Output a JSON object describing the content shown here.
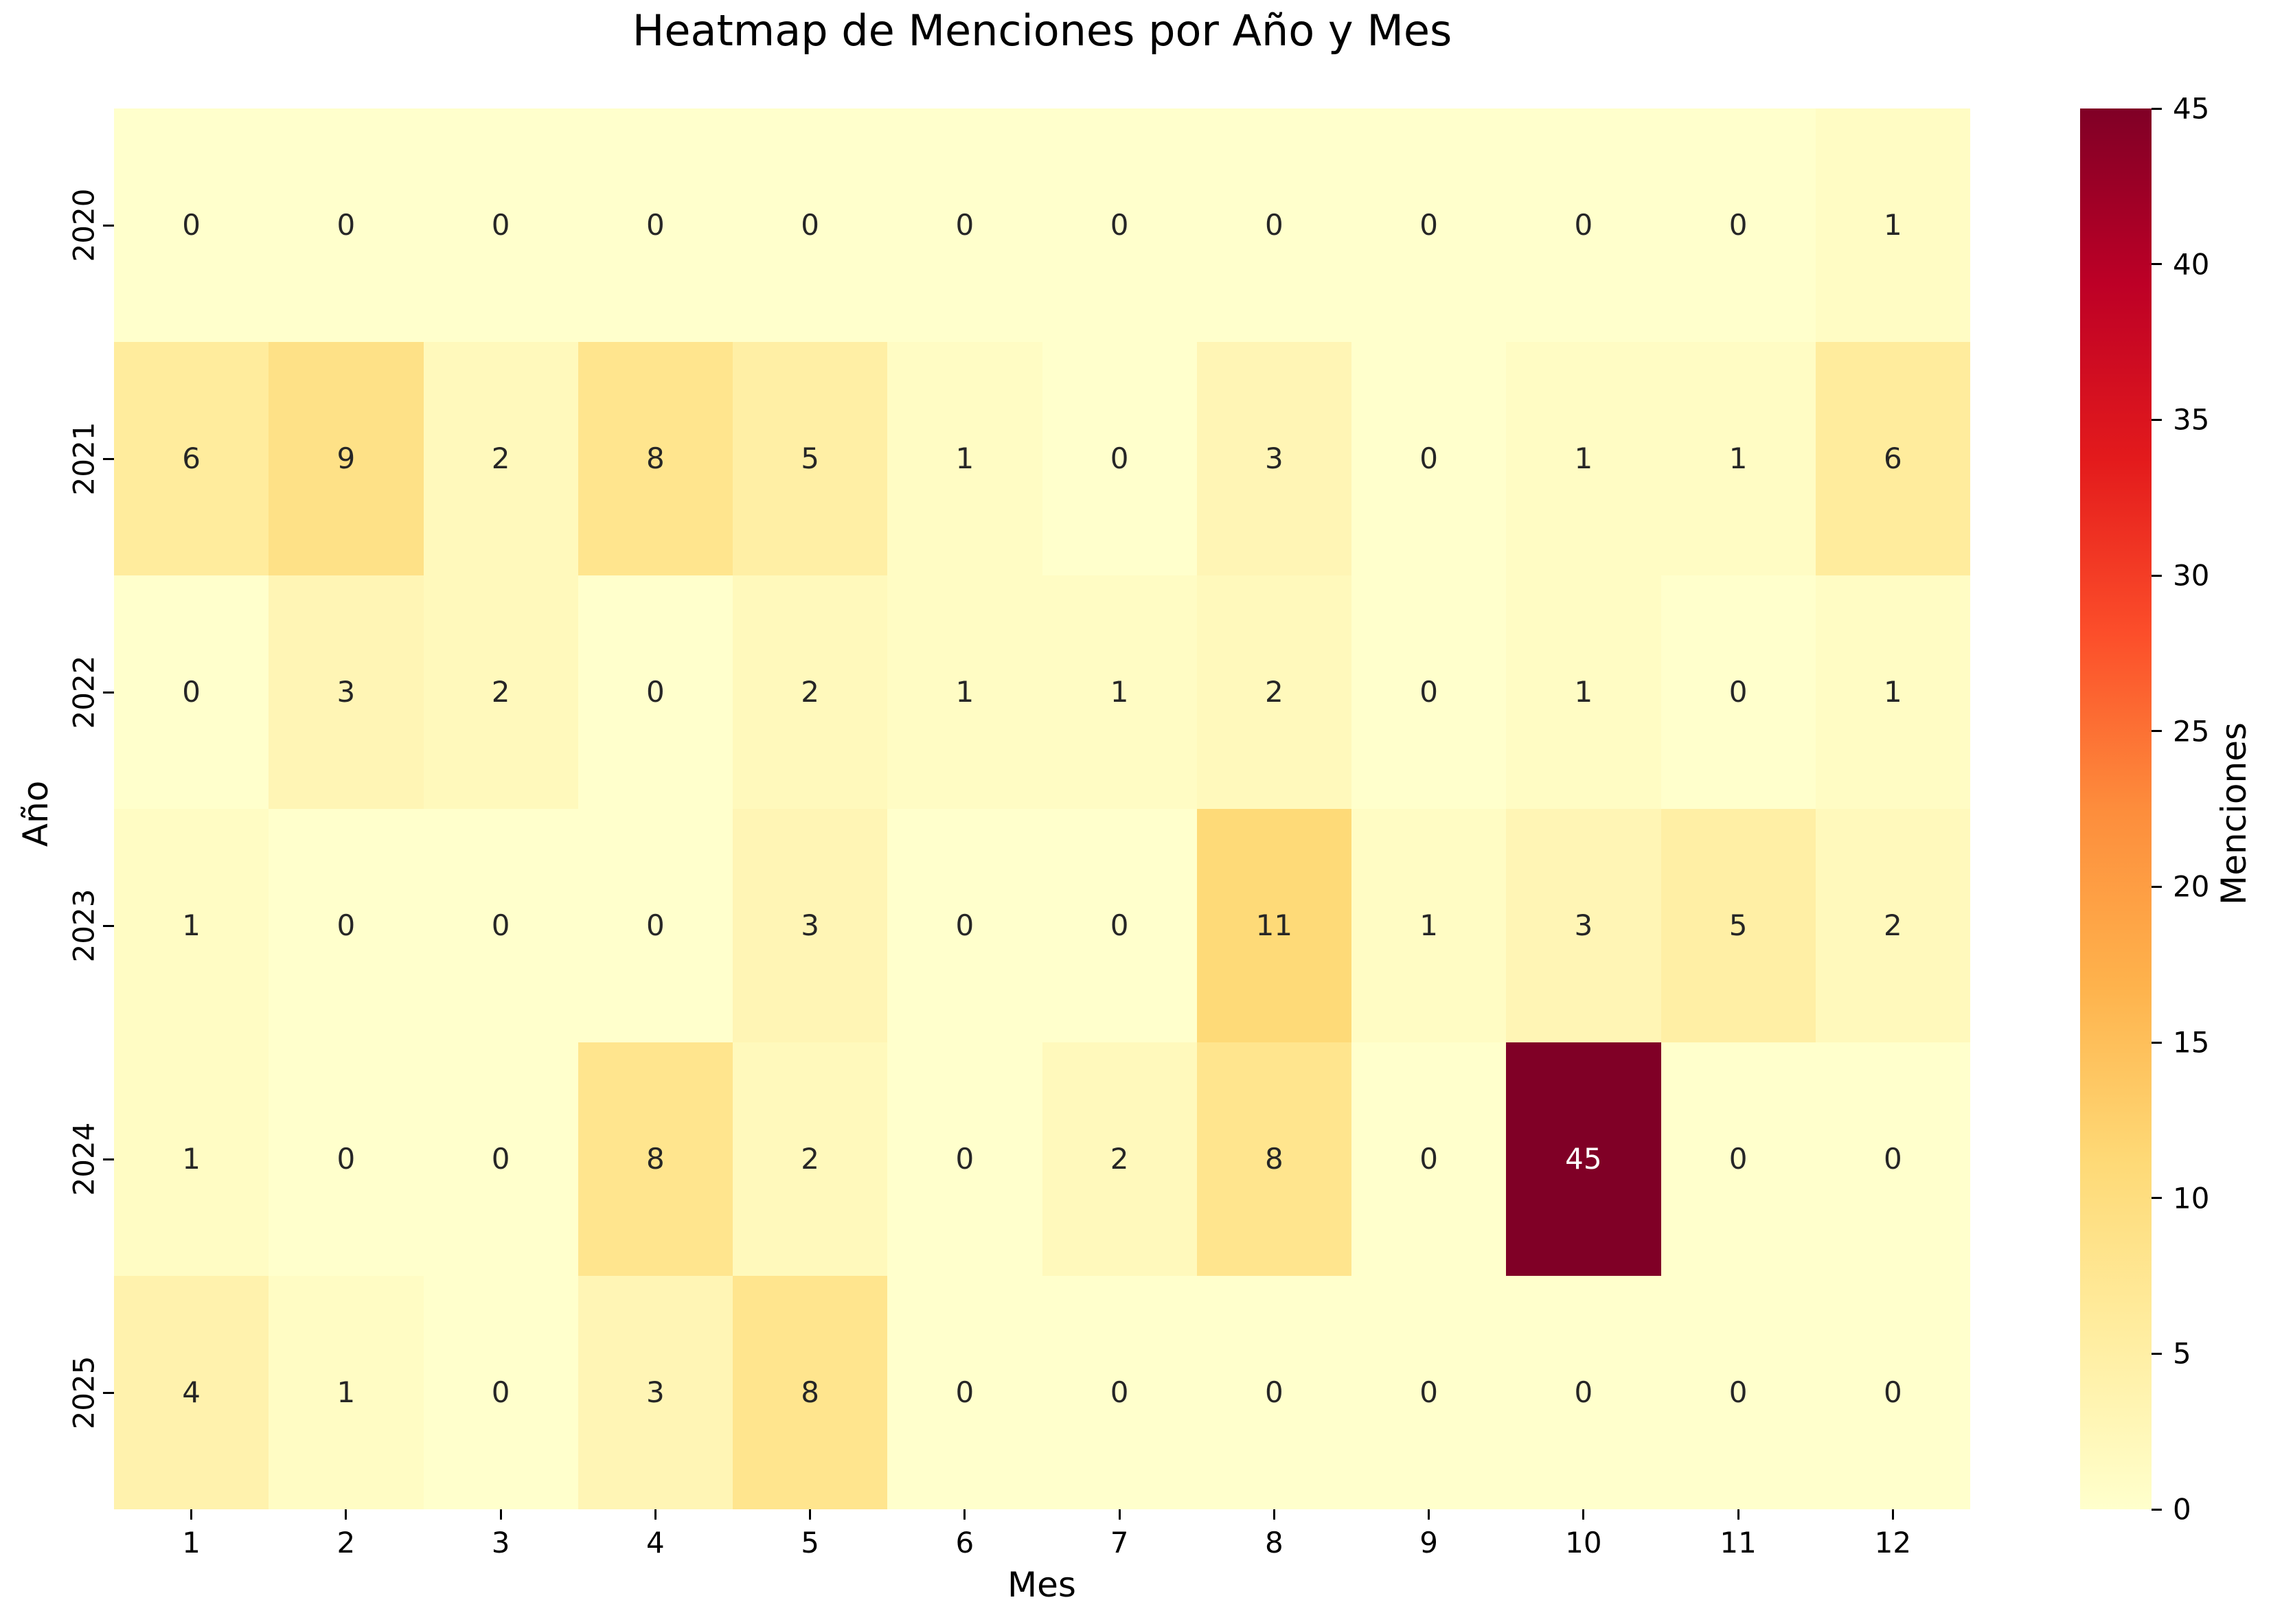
{
  "chart_data": {
    "type": "heatmap",
    "title": "Heatmap de Menciones por Año y Mes",
    "xlabel": "Mes",
    "ylabel": "Año",
    "x_categories": [
      "1",
      "2",
      "3",
      "4",
      "5",
      "6",
      "7",
      "8",
      "9",
      "10",
      "11",
      "12"
    ],
    "y_categories": [
      "2020",
      "2021",
      "2022",
      "2023",
      "2024",
      "2025"
    ],
    "values": [
      [
        0,
        0,
        0,
        0,
        0,
        0,
        0,
        0,
        0,
        0,
        0,
        1
      ],
      [
        6,
        9,
        2,
        8,
        5,
        1,
        0,
        3,
        0,
        1,
        1,
        6
      ],
      [
        0,
        3,
        2,
        0,
        2,
        1,
        1,
        2,
        0,
        1,
        0,
        1
      ],
      [
        1,
        0,
        0,
        0,
        3,
        0,
        0,
        11,
        1,
        3,
        5,
        2
      ],
      [
        1,
        0,
        0,
        8,
        2,
        0,
        2,
        8,
        0,
        45,
        0,
        0
      ],
      [
        4,
        1,
        0,
        3,
        8,
        0,
        0,
        0,
        0,
        0,
        0,
        0
      ]
    ],
    "vmin": 0,
    "vmax": 45,
    "grid": false,
    "legend_position": "none",
    "colorbar": {
      "label": "Menciones",
      "ticks": [
        0,
        5,
        10,
        15,
        20,
        25,
        30,
        35,
        40,
        45
      ],
      "position": "right"
    },
    "colormap": {
      "name": "YlOrRd",
      "anchors": [
        "#ffffcc",
        "#ffeda0",
        "#fed976",
        "#feb24c",
        "#fd8d3c",
        "#fc4e2a",
        "#e31a1c",
        "#bd0026",
        "#800026"
      ]
    },
    "colors": {
      "annotation_dark": "#262626",
      "annotation_light": "#ffffff",
      "tick_color": "#000000",
      "background": "#ffffff",
      "max_cell": "#800026",
      "zero_cell": "#ffffcc"
    }
  }
}
